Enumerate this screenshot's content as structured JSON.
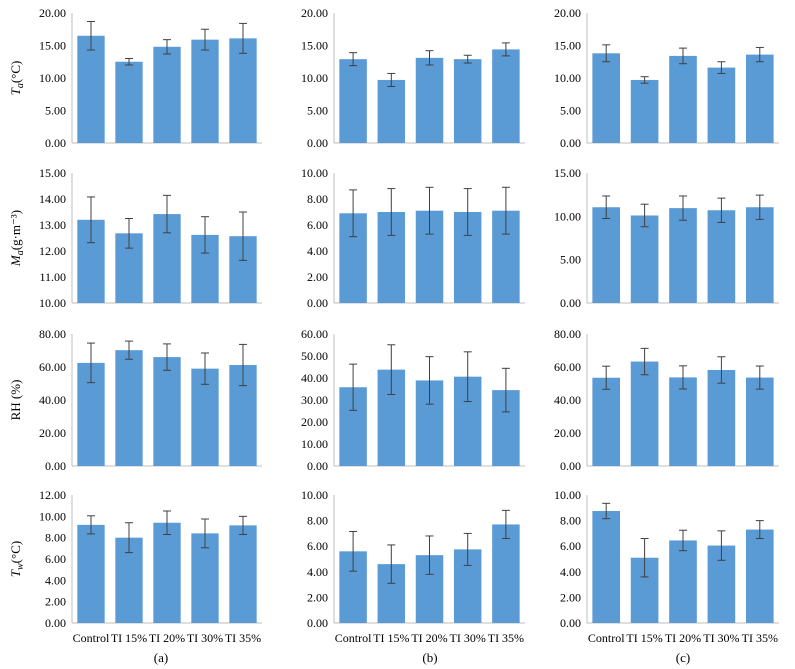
{
  "chart_data": [
    {
      "type": "bar",
      "panel": "a1",
      "categories": [
        "Control",
        "TI 15%",
        "TI 20%",
        "TI 30%",
        "TI 35%"
      ],
      "values": [
        16.5,
        12.5,
        14.8,
        15.9,
        16.1
      ],
      "errors": [
        2.2,
        0.5,
        1.1,
        1.6,
        2.3
      ],
      "ylim": [
        0,
        20
      ],
      "yticks": [
        "0.00",
        "5.00",
        "10.00",
        "15.00",
        "20.00"
      ],
      "ylabel": {
        "main": "T",
        "sub": "a",
        "rest": "(°C)"
      },
      "color": "#5b9bd5"
    },
    {
      "type": "bar",
      "panel": "b1",
      "categories": [
        "Control",
        "TI 15%",
        "TI 20%",
        "TI 30%",
        "TI 35%"
      ],
      "values": [
        12.9,
        9.7,
        13.1,
        12.9,
        14.4
      ],
      "errors": [
        1.0,
        1.0,
        1.1,
        0.6,
        1.0
      ],
      "ylim": [
        0,
        20
      ],
      "yticks": [
        "0.00",
        "5.00",
        "10.00",
        "15.00",
        "20.00"
      ],
      "color": "#5b9bd5"
    },
    {
      "type": "bar",
      "panel": "c1",
      "categories": [
        "Control",
        "TI 15%",
        "TI 20%",
        "TI 30%",
        "TI 35%"
      ],
      "values": [
        13.8,
        9.7,
        13.4,
        11.6,
        13.6
      ],
      "errors": [
        1.3,
        0.5,
        1.2,
        0.9,
        1.1
      ],
      "ylim": [
        0,
        20
      ],
      "yticks": [
        "0.00",
        "5.00",
        "10.00",
        "15.00",
        "20.00"
      ],
      "color": "#5b9bd5"
    },
    {
      "type": "bar",
      "panel": "a2",
      "categories": [
        "Control",
        "TI 15%",
        "TI 20%",
        "TI 30%",
        "TI 35%"
      ],
      "values": [
        13.2,
        12.68,
        13.42,
        12.62,
        12.57
      ],
      "errors": [
        0.88,
        0.57,
        0.72,
        0.7,
        0.93
      ],
      "ylim": [
        10,
        15
      ],
      "yticks": [
        "10.00",
        "11.00",
        "12.00",
        "13.00",
        "14.00",
        "15.00"
      ],
      "ylabel": {
        "main": "M",
        "sub": "a",
        "rest": "(g·m⁻³)"
      },
      "color": "#5b9bd5"
    },
    {
      "type": "bar",
      "panel": "b2",
      "categories": [
        "Control",
        "TI 15%",
        "TI 20%",
        "TI 30%",
        "TI 35%"
      ],
      "values": [
        6.9,
        7.0,
        7.1,
        7.0,
        7.1
      ],
      "errors": [
        1.8,
        1.8,
        1.8,
        1.8,
        1.8
      ],
      "ylim": [
        0,
        10
      ],
      "yticks": [
        "0.00",
        "2.00",
        "4.00",
        "6.00",
        "8.00",
        "10.00"
      ],
      "color": "#5b9bd5"
    },
    {
      "type": "bar",
      "panel": "c2",
      "categories": [
        "Control",
        "TI 15%",
        "TI 20%",
        "TI 30%",
        "TI 35%"
      ],
      "values": [
        11.05,
        10.1,
        10.95,
        10.7,
        11.05
      ],
      "errors": [
        1.3,
        1.3,
        1.4,
        1.4,
        1.4
      ],
      "ylim": [
        0,
        15
      ],
      "yticks": [
        "0.00",
        "5.00",
        "10.00",
        "15.00"
      ],
      "color": "#5b9bd5"
    },
    {
      "type": "bar",
      "panel": "a3",
      "categories": [
        "Control",
        "TI 15%",
        "TI 20%",
        "TI 30%",
        "TI 35%"
      ],
      "values": [
        62.5,
        70.2,
        66.0,
        59.0,
        61.2
      ],
      "errors": [
        12.0,
        5.5,
        8.0,
        9.5,
        12.5
      ],
      "ylim": [
        0,
        80
      ],
      "yticks": [
        "0.00",
        "20.00",
        "40.00",
        "60.00",
        "80.00"
      ],
      "ylabel": {
        "main": "RH (%)",
        "sub": "",
        "rest": ""
      },
      "color": "#5b9bd5"
    },
    {
      "type": "bar",
      "panel": "b3",
      "categories": [
        "Control",
        "TI 15%",
        "TI 20%",
        "TI 30%",
        "TI 35%"
      ],
      "values": [
        35.8,
        43.8,
        38.9,
        40.6,
        34.5
      ],
      "errors": [
        10.5,
        11.3,
        10.8,
        11.3,
        9.9
      ],
      "ylim": [
        0,
        60
      ],
      "yticks": [
        "0.00",
        "10.00",
        "20.00",
        "30.00",
        "40.00",
        "50.00",
        "60.00"
      ],
      "color": "#5b9bd5"
    },
    {
      "type": "bar",
      "panel": "c3",
      "categories": [
        "Control",
        "TI 15%",
        "TI 20%",
        "TI 30%",
        "TI 35%"
      ],
      "values": [
        53.5,
        63.3,
        53.7,
        58.2,
        53.6
      ],
      "errors": [
        7.0,
        8.0,
        7.0,
        8.0,
        7.0
      ],
      "ylim": [
        0,
        80
      ],
      "yticks": [
        "0.00",
        "20.00",
        "40.00",
        "60.00",
        "80.00"
      ],
      "color": "#5b9bd5"
    },
    {
      "type": "bar",
      "panel": "a4",
      "categories": [
        "Control",
        "TI 15%",
        "TI 20%",
        "TI 30%",
        "TI 35%"
      ],
      "values": [
        9.2,
        8.0,
        9.4,
        8.4,
        9.15
      ],
      "errors": [
        0.85,
        1.4,
        1.1,
        1.35,
        0.85
      ],
      "ylim": [
        0,
        12
      ],
      "yticks": [
        "0.00",
        "2.00",
        "4.00",
        "6.00",
        "8.00",
        "10.00",
        "12.00"
      ],
      "ylabel": {
        "main": "T",
        "sub": "w",
        "rest": "(°C)"
      },
      "color": "#5b9bd5"
    },
    {
      "type": "bar",
      "panel": "b4",
      "categories": [
        "Control",
        "TI 15%",
        "TI 20%",
        "TI 30%",
        "TI 35%"
      ],
      "values": [
        5.6,
        4.6,
        5.3,
        5.75,
        7.7
      ],
      "errors": [
        1.55,
        1.5,
        1.5,
        1.25,
        1.1
      ],
      "ylim": [
        0,
        10
      ],
      "yticks": [
        "0.00",
        "2.00",
        "4.00",
        "6.00",
        "8.00",
        "10.00"
      ],
      "color": "#5b9bd5"
    },
    {
      "type": "bar",
      "panel": "c4",
      "categories": [
        "Control",
        "TI 15%",
        "TI 20%",
        "TI 30%",
        "TI 35%"
      ],
      "values": [
        8.75,
        5.1,
        6.45,
        6.05,
        7.3
      ],
      "errors": [
        0.6,
        1.5,
        0.8,
        1.15,
        0.7
      ],
      "ylim": [
        0,
        10
      ],
      "yticks": [
        "0.00",
        "2.00",
        "4.00",
        "6.00",
        "8.00",
        "10.00"
      ],
      "color": "#5b9bd5"
    }
  ],
  "panel_labels": [
    "(a)",
    "(b)",
    "(c)"
  ]
}
